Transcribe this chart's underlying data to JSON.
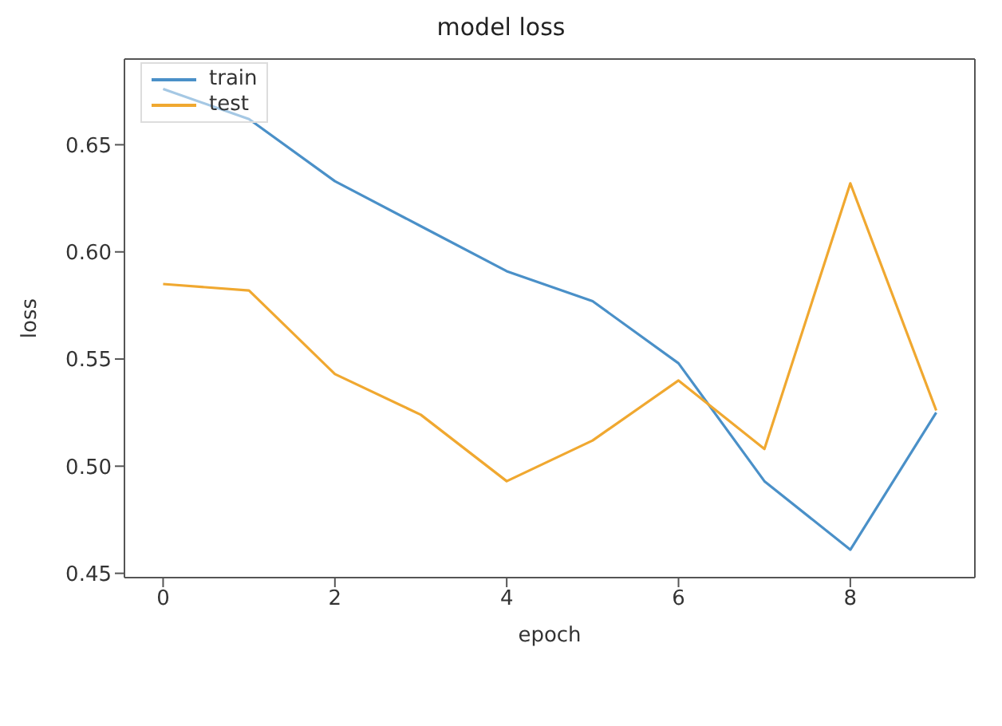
{
  "chart_data": {
    "type": "line",
    "title": "model loss",
    "xlabel": "epoch",
    "ylabel": "loss",
    "x": [
      0,
      1,
      2,
      3,
      4,
      5,
      6,
      7,
      8,
      9
    ],
    "series": [
      {
        "name": "train",
        "color": "#4a90c8",
        "values": [
          0.676,
          0.662,
          0.633,
          0.612,
          0.591,
          0.577,
          0.548,
          0.493,
          0.461,
          0.525
        ]
      },
      {
        "name": "test",
        "color": "#f0a830",
        "values": [
          0.585,
          0.582,
          0.543,
          0.524,
          0.493,
          0.512,
          0.54,
          0.508,
          0.632,
          0.526
        ]
      }
    ],
    "xlim": [
      -0.45,
      9.45
    ],
    "xticks": [
      0,
      2,
      4,
      6,
      8
    ],
    "ylim": [
      0.448,
      0.69
    ],
    "yticks": [
      0.45,
      {
        "value": 0.5,
        "label": "0.50"
      },
      0.55,
      {
        "value": 0.6,
        "label": "0.60"
      },
      0.65
    ],
    "grid": false,
    "legend": "top left",
    "marker": "none",
    "line_style": "solid"
  }
}
